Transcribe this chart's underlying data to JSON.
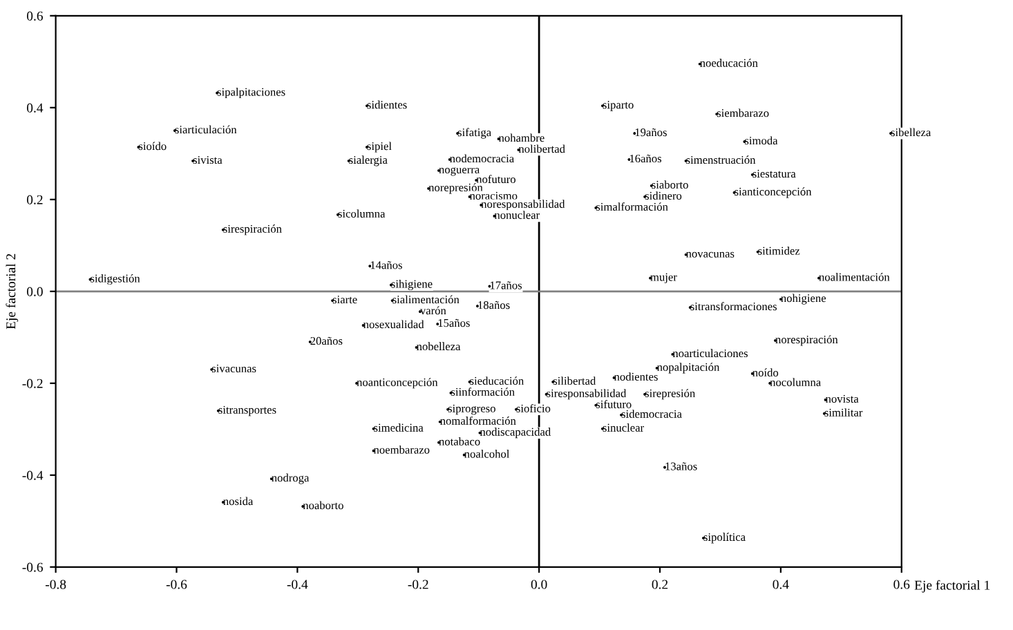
{
  "chart_data": {
    "type": "scatter",
    "xlabel": "Eje factorial 1",
    "ylabel": "Eje factorial 2",
    "grid": false,
    "xlim": [
      -0.8,
      0.6
    ],
    "ylim": [
      -0.6,
      0.6
    ],
    "xticks": [
      -0.8,
      -0.6,
      -0.4,
      -0.2,
      {
        "value": 0,
        "label": "0.0"
      },
      0.2,
      0.4,
      0.6
    ],
    "yticks": [
      -0.6,
      -0.4,
      -0.2,
      {
        "value": 0,
        "label": "0.0"
      },
      0.2,
      0.4,
      0.6
    ],
    "ref_lines": [
      {
        "axis": "x",
        "value": 0,
        "color": "#000000"
      },
      {
        "axis": "y",
        "value": 0,
        "color": "#808080"
      }
    ],
    "marker": "circle",
    "series": [
      {
        "color": "#000000",
        "x": [
          -0.533,
          -0.603,
          -0.663,
          -0.573,
          -0.523,
          -0.743,
          -0.285,
          -0.285,
          -0.315,
          -0.333,
          -0.135,
          -0.067,
          -0.034,
          -0.148,
          -0.166,
          -0.104,
          -0.183,
          -0.115,
          -0.096,
          -0.074,
          -0.28,
          -0.245,
          -0.082,
          -0.342,
          -0.243,
          -0.197,
          -0.102,
          -0.291,
          -0.168,
          -0.379,
          -0.203,
          -0.302,
          -0.115,
          -0.146,
          -0.151,
          -0.038,
          -0.164,
          -0.274,
          -0.098,
          -0.166,
          -0.274,
          -0.124,
          -0.542,
          -0.531,
          -0.443,
          -0.523,
          -0.391,
          0.266,
          0.105,
          0.294,
          0.158,
          0.34,
          0.582,
          0.149,
          0.243,
          0.353,
          0.186,
          0.175,
          0.323,
          0.094,
          0.243,
          0.362,
          0.184,
          0.463,
          0.4,
          0.25,
          0.391,
          0.221,
          0.195,
          0.124,
          0.175,
          0.353,
          0.382,
          0.023,
          0.012,
          0.094,
          0.136,
          0.105,
          0.474,
          0.472,
          0.208,
          0.272
        ],
        "values": [
          0.432,
          0.35,
          0.314,
          0.284,
          0.134,
          0.026,
          0.404,
          0.314,
          0.284,
          0.167,
          0.344,
          0.332,
          0.308,
          0.287,
          0.263,
          0.242,
          0.224,
          0.206,
          0.188,
          0.164,
          0.055,
          0.014,
          0.011,
          -0.02,
          -0.02,
          -0.044,
          -0.032,
          -0.074,
          -0.071,
          -0.11,
          -0.122,
          -0.2,
          -0.197,
          -0.221,
          -0.257,
          -0.257,
          -0.284,
          -0.299,
          -0.308,
          -0.329,
          -0.347,
          -0.356,
          -0.17,
          -0.26,
          -0.408,
          -0.459,
          -0.468,
          0.495,
          0.404,
          0.386,
          0.344,
          0.326,
          0.344,
          0.287,
          0.284,
          0.254,
          0.23,
          0.206,
          0.215,
          0.182,
          0.08,
          0.086,
          0.029,
          0.029,
          -0.017,
          -0.035,
          -0.107,
          -0.137,
          -0.167,
          -0.188,
          -0.224,
          -0.179,
          -0.2,
          -0.197,
          -0.224,
          -0.248,
          -0.269,
          -0.299,
          -0.236,
          -0.266,
          -0.383,
          -0.537
        ]
      }
    ],
    "annotations": [
      {
        "text": "sipalpitaciones",
        "x": -0.533,
        "y": 0.432
      },
      {
        "text": "siarticulación",
        "x": -0.603,
        "y": 0.35
      },
      {
        "text": "sioído",
        "x": -0.663,
        "y": 0.314
      },
      {
        "text": "sivista",
        "x": -0.573,
        "y": 0.284
      },
      {
        "text": "sirespiración",
        "x": -0.523,
        "y": 0.134
      },
      {
        "text": "sidigestión",
        "x": -0.743,
        "y": 0.026
      },
      {
        "text": "sidientes",
        "x": -0.285,
        "y": 0.404
      },
      {
        "text": "sipiel",
        "x": -0.285,
        "y": 0.314
      },
      {
        "text": "sialergia",
        "x": -0.315,
        "y": 0.284
      },
      {
        "text": "sicolumna",
        "x": -0.333,
        "y": 0.167
      },
      {
        "text": "sifatiga",
        "x": -0.135,
        "y": 0.344
      },
      {
        "text": "nohambre",
        "x": -0.067,
        "y": 0.332
      },
      {
        "text": "nolibertad",
        "x": -0.034,
        "y": 0.308
      },
      {
        "text": "nodemocracia",
        "x": -0.148,
        "y": 0.287
      },
      {
        "text": "noguerra",
        "x": -0.166,
        "y": 0.263
      },
      {
        "text": "nofuturo",
        "x": -0.104,
        "y": 0.242
      },
      {
        "text": "norepresión",
        "x": -0.183,
        "y": 0.224
      },
      {
        "text": "noracismo",
        "x": -0.115,
        "y": 0.206
      },
      {
        "text": "noresponsabilidad",
        "x": -0.096,
        "y": 0.188
      },
      {
        "text": "nonuclear",
        "x": -0.074,
        "y": 0.164
      },
      {
        "text": "14años",
        "x": -0.28,
        "y": 0.055
      },
      {
        "text": "sihigiene",
        "x": -0.245,
        "y": 0.014
      },
      {
        "text": "17años",
        "x": -0.082,
        "y": 0.011
      },
      {
        "text": "siarte",
        "x": -0.342,
        "y": -0.02
      },
      {
        "text": "sialimentación",
        "x": -0.243,
        "y": -0.02
      },
      {
        "text": "varón",
        "x": -0.197,
        "y": -0.044
      },
      {
        "text": "18años",
        "x": -0.102,
        "y": -0.032
      },
      {
        "text": "nosexualidad",
        "x": -0.291,
        "y": -0.074
      },
      {
        "text": "15años",
        "x": -0.168,
        "y": -0.071
      },
      {
        "text": "20años",
        "x": -0.379,
        "y": -0.11
      },
      {
        "text": "nobelleza",
        "x": -0.203,
        "y": -0.122
      },
      {
        "text": "noanticoncepción",
        "x": -0.302,
        "y": -0.2
      },
      {
        "text": "sieducación",
        "x": -0.115,
        "y": -0.197
      },
      {
        "text": "siinformación",
        "x": -0.146,
        "y": -0.221
      },
      {
        "text": "siprogreso",
        "x": -0.151,
        "y": -0.257
      },
      {
        "text": "sioficio",
        "x": -0.038,
        "y": -0.257
      },
      {
        "text": "nomalformación",
        "x": -0.164,
        "y": -0.284
      },
      {
        "text": "simedicina",
        "x": -0.274,
        "y": -0.299
      },
      {
        "text": "nodiscapacidad",
        "x": -0.098,
        "y": -0.308
      },
      {
        "text": "notabaco",
        "x": -0.166,
        "y": -0.329
      },
      {
        "text": "noembarazo",
        "x": -0.274,
        "y": -0.347
      },
      {
        "text": "noalcohol",
        "x": -0.124,
        "y": -0.356
      },
      {
        "text": "sivacunas",
        "x": -0.542,
        "y": -0.17
      },
      {
        "text": "sitransportes",
        "x": -0.531,
        "y": -0.26
      },
      {
        "text": "nodroga",
        "x": -0.443,
        "y": -0.408
      },
      {
        "text": "nosida",
        "x": -0.523,
        "y": -0.459
      },
      {
        "text": "noaborto",
        "x": -0.391,
        "y": -0.468
      },
      {
        "text": "noeducación",
        "x": 0.266,
        "y": 0.495
      },
      {
        "text": "siparto",
        "x": 0.105,
        "y": 0.404
      },
      {
        "text": "siembarazo",
        "x": 0.294,
        "y": 0.386
      },
      {
        "text": "19años",
        "x": 0.158,
        "y": 0.344
      },
      {
        "text": "simoda",
        "x": 0.34,
        "y": 0.326
      },
      {
        "text": "sibelleza",
        "x": 0.582,
        "y": 0.344
      },
      {
        "text": "16años",
        "x": 0.149,
        "y": 0.287
      },
      {
        "text": "simenstruación",
        "x": 0.243,
        "y": 0.284
      },
      {
        "text": "siestatura",
        "x": 0.353,
        "y": 0.254
      },
      {
        "text": "siaborto",
        "x": 0.186,
        "y": 0.23
      },
      {
        "text": "sidinero",
        "x": 0.175,
        "y": 0.206
      },
      {
        "text": "sianticoncepción",
        "x": 0.323,
        "y": 0.215
      },
      {
        "text": "simalformación",
        "x": 0.094,
        "y": 0.182
      },
      {
        "text": "novacunas",
        "x": 0.243,
        "y": 0.08
      },
      {
        "text": "sitimidez",
        "x": 0.362,
        "y": 0.086
      },
      {
        "text": "mujer",
        "x": 0.184,
        "y": 0.029
      },
      {
        "text": "noalimentación",
        "x": 0.463,
        "y": 0.029
      },
      {
        "text": "nohigiene",
        "x": 0.4,
        "y": -0.017
      },
      {
        "text": "sitransformaciones",
        "x": 0.25,
        "y": -0.035
      },
      {
        "text": "norespiración",
        "x": 0.391,
        "y": -0.107
      },
      {
        "text": "noarticulaciones",
        "x": 0.221,
        "y": -0.137
      },
      {
        "text": "nopalpitación",
        "x": 0.195,
        "y": -0.167
      },
      {
        "text": "nodientes",
        "x": 0.124,
        "y": -0.188
      },
      {
        "text": "sirepresión",
        "x": 0.175,
        "y": -0.224
      },
      {
        "text": "noído",
        "x": 0.353,
        "y": -0.179
      },
      {
        "text": "nocolumna",
        "x": 0.382,
        "y": -0.2
      },
      {
        "text": "silibertad",
        "x": 0.023,
        "y": -0.197
      },
      {
        "text": "siresponsabilidad",
        "x": 0.012,
        "y": -0.224
      },
      {
        "text": "sifuturo",
        "x": 0.094,
        "y": -0.248
      },
      {
        "text": "sidemocracia",
        "x": 0.136,
        "y": -0.269
      },
      {
        "text": "sinuclear",
        "x": 0.105,
        "y": -0.299
      },
      {
        "text": "novista",
        "x": 0.474,
        "y": -0.236
      },
      {
        "text": "similitar",
        "x": 0.472,
        "y": -0.266
      },
      {
        "text": "13años",
        "x": 0.208,
        "y": -0.383
      },
      {
        "text": "sipolítica",
        "x": 0.272,
        "y": -0.537
      }
    ]
  }
}
